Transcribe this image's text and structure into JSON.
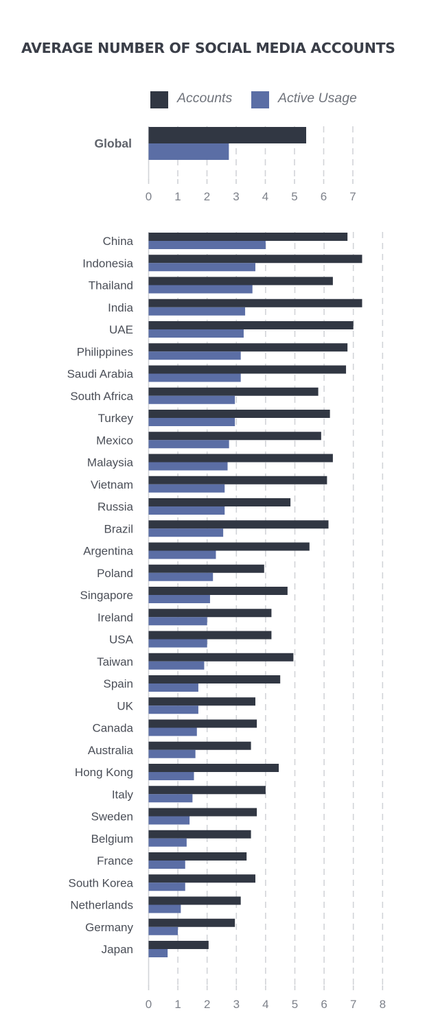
{
  "chart_data": [
    {
      "type": "bar",
      "orientation": "horizontal",
      "title": "AVERAGE NUMBER OF SOCIAL MEDIA ACCOUNTS",
      "legend": {
        "placement": "top",
        "entries": [
          "Accounts",
          "Active Usage"
        ]
      },
      "categories": [
        "Global"
      ],
      "series": [
        {
          "name": "Accounts",
          "color": "#313743",
          "values": [
            5.4
          ]
        },
        {
          "name": "Active Usage",
          "color": "#5b6ea5",
          "values": [
            2.75
          ]
        }
      ],
      "xlim": [
        0,
        7
      ],
      "xticks": [
        "0",
        "1",
        "2",
        "3",
        "4",
        "5",
        "6",
        "7"
      ],
      "grid": "vertical dashed"
    },
    {
      "type": "bar",
      "orientation": "horizontal",
      "categories": [
        "China",
        "Indonesia",
        "Thailand",
        "India",
        "UAE",
        "Philippines",
        "Saudi Arabia",
        "South Africa",
        "Turkey",
        "Mexico",
        "Malaysia",
        "Vietnam",
        "Russia",
        "Brazil",
        "Argentina",
        "Poland",
        "Singapore",
        "Ireland",
        "USA",
        "Taiwan",
        "Spain",
        "UK",
        "Canada",
        "Australia",
        "Hong Kong",
        "Italy",
        "Sweden",
        "Belgium",
        "France",
        "South Korea",
        "Netherlands",
        "Germany",
        "Japan"
      ],
      "series": [
        {
          "name": "Accounts",
          "color": "#313743",
          "values": [
            6.8,
            7.3,
            6.3,
            7.3,
            7.0,
            6.8,
            6.75,
            5.8,
            6.2,
            5.9,
            6.3,
            6.1,
            4.85,
            6.15,
            5.5,
            3.95,
            4.75,
            4.2,
            4.2,
            4.95,
            4.5,
            3.65,
            3.7,
            3.5,
            4.45,
            4.0,
            3.7,
            3.5,
            3.35,
            3.65,
            3.15,
            2.95,
            2.05
          ]
        },
        {
          "name": "Active Usage",
          "color": "#5b6ea5",
          "values": [
            4.0,
            3.65,
            3.55,
            3.3,
            3.25,
            3.15,
            3.15,
            2.95,
            2.95,
            2.75,
            2.7,
            2.6,
            2.6,
            2.55,
            2.3,
            2.2,
            2.1,
            2.0,
            2.0,
            1.9,
            1.7,
            1.7,
            1.65,
            1.6,
            1.55,
            1.5,
            1.4,
            1.3,
            1.25,
            1.25,
            1.1,
            1.0,
            0.65
          ]
        }
      ],
      "xlim": [
        0,
        8
      ],
      "xticks": [
        "0",
        "1",
        "2",
        "3",
        "4",
        "5",
        "6",
        "7",
        "8"
      ],
      "grid": "vertical dashed"
    }
  ]
}
